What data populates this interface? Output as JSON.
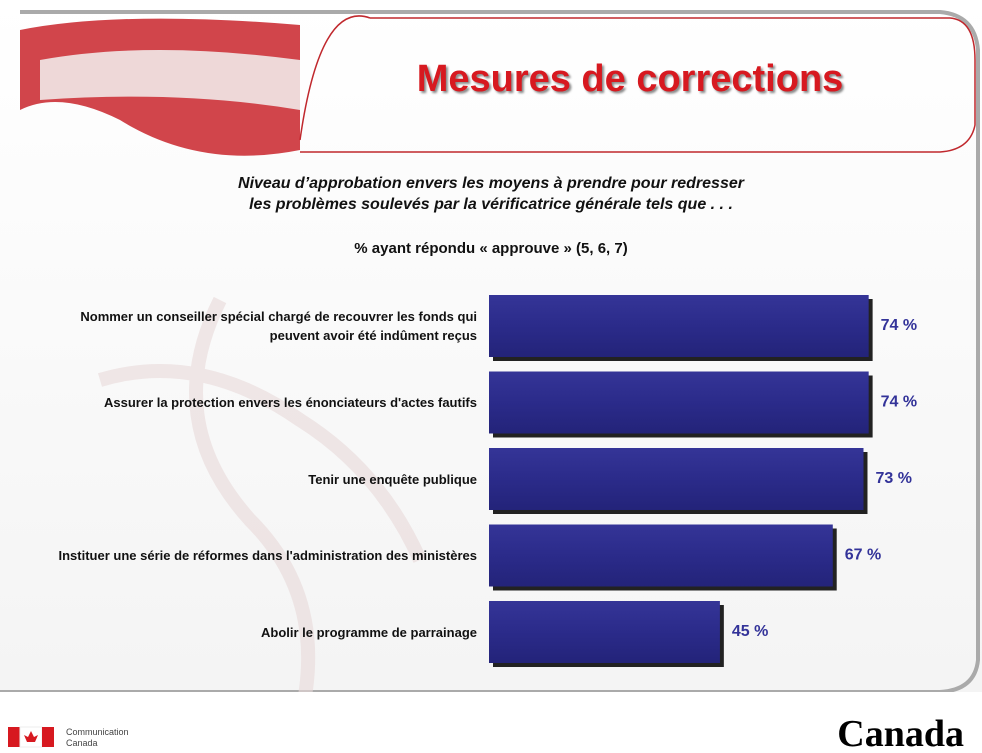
{
  "chart_data": {
    "type": "hbar",
    "title": "Mesures de corrections",
    "subtitle": [
      "Niveau d’approbation envers les moyens à prendre pour redresser",
      "les problèmes soulevés par la vérificatrice générale tels que . . ."
    ],
    "measure": "% ayant répondu « approuve » (5, 6, 7)",
    "categories": [
      "Nommer un conseiller spécial chargé de recouvrer les fonds qui peuvent avoir été indûment reçus",
      "Assurer la protection envers les énonciateurs d'actes fautifs",
      "Tenir une enquête publique",
      "Instituer une série de réformes dans l'administration des ministères",
      "Abolir le programme de parrainage"
    ],
    "values": [
      74,
      74,
      73,
      67,
      45
    ],
    "value_labels": [
      "74 %",
      "74 %",
      "73 %",
      "67 %",
      "45 %"
    ],
    "color": "#2b2b8a"
  },
  "footer": {
    "department": [
      "Communication",
      "Canada"
    ],
    "wordmark": "Canada"
  }
}
